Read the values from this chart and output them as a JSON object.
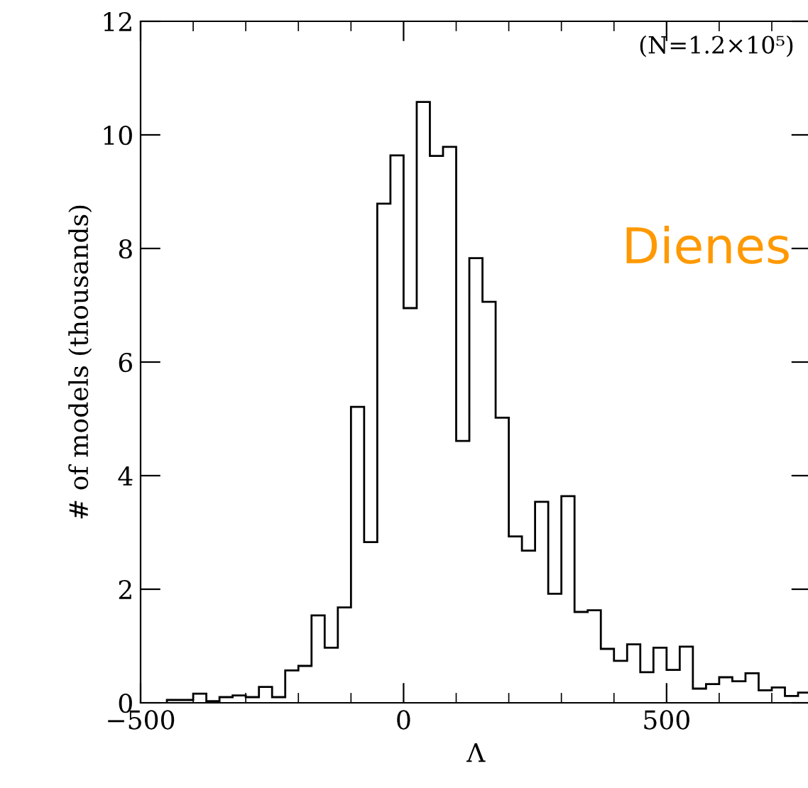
{
  "chart_data": {
    "type": "histogram",
    "xlabel": "Λ",
    "ylabel": "# of models (thousands)",
    "bins": [
      -450,
      -400,
      -375,
      -350,
      -325,
      -300,
      -275,
      -250,
      -225,
      -200,
      -175,
      -150,
      -125,
      -100,
      -75,
      -50,
      -25,
      0,
      25,
      50,
      75,
      100,
      125,
      150,
      175,
      200,
      225,
      250,
      275,
      300,
      325,
      350,
      375,
      400,
      425,
      450,
      475,
      500,
      525,
      550,
      575,
      600,
      625,
      650,
      675,
      700,
      725,
      750,
      775
    ],
    "values": [
      0.05,
      0.16,
      0.03,
      0.1,
      0.13,
      0.1,
      0.28,
      0.1,
      0.57,
      0.65,
      1.54,
      0.97,
      1.68,
      5.21,
      2.83,
      8.79,
      9.64,
      6.95,
      10.58,
      9.63,
      9.79,
      4.61,
      7.83,
      7.06,
      5.02,
      2.93,
      2.68,
      3.54,
      1.92,
      3.64,
      1.6,
      1.63,
      0.95,
      0.74,
      1.03,
      0.54,
      0.97,
      0.58,
      0.99,
      0.25,
      0.33,
      0.45,
      0.38,
      0.52,
      0.22,
      0.27,
      0.12,
      0.18
    ],
    "color": "#000000",
    "xlim": [
      -500,
      775
    ],
    "ylim": [
      0,
      12
    ],
    "xticks": [
      -500,
      {
        "value": -400,
        "label": null
      },
      {
        "value": -300,
        "label": null
      },
      {
        "value": -200,
        "label": null
      },
      {
        "value": -100,
        "label": null
      },
      0,
      {
        "value": 100,
        "label": null
      },
      {
        "value": 200,
        "label": null
      },
      {
        "value": 300,
        "label": null
      },
      {
        "value": 400,
        "label": null
      },
      500,
      {
        "value": 600,
        "label": null
      },
      {
        "value": 700,
        "label": null
      }
    ],
    "yticks": [
      0,
      2,
      4,
      6,
      8,
      10,
      12
    ],
    "annotations": [
      "(N=1.2×10⁵)",
      "Dienes"
    ],
    "grid": false,
    "legend": false
  }
}
